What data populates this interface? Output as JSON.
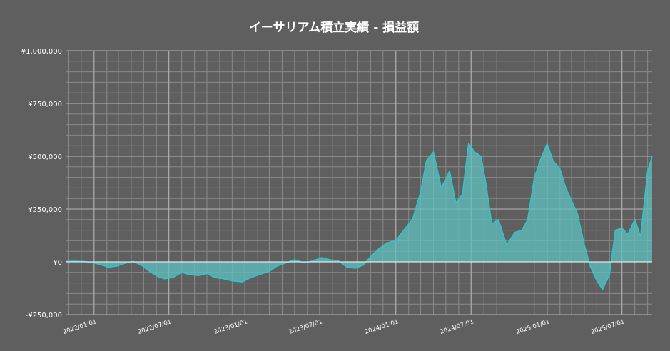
{
  "chart_data": {
    "type": "area",
    "title": "イーサリアム積立実績 - 損益額",
    "xlabel": "",
    "ylabel": "",
    "x_range": [
      "2021-10-26",
      "2025-09-12"
    ],
    "ylim": [
      -250000,
      1000000
    ],
    "y_ticks": [
      -250000,
      0,
      250000,
      500000,
      750000,
      1000000
    ],
    "y_tick_labels": [
      "-¥250,000",
      "¥0",
      "¥250,000",
      "¥500,000",
      "¥750,000",
      "¥1,000,000"
    ],
    "x_ticks": [
      "2022-01-01",
      "2022-07-01",
      "2023-01-01",
      "2023-07-01",
      "2024-01-01",
      "2024-07-01",
      "2025-01-01",
      "2025-07-01"
    ],
    "x_tick_labels": [
      "2022/01/01",
      "2022/07/01",
      "2023/01/01",
      "2023/07/01",
      "2024/01/01",
      "2024/07/01",
      "2025/01/01",
      "2025/07/01"
    ],
    "grid": true,
    "colors": {
      "background": "#5f5f5f",
      "grid_major": "#b4b4b4",
      "grid_minor": "#8a8a8a",
      "line": "#2ec4cc",
      "fill": "#5ec0c0"
    },
    "series": [
      {
        "x": [
          "2021-10-26",
          "2021-11-15",
          "2021-12-05",
          "2021-12-25",
          "2022-01-15",
          "2022-02-05",
          "2022-02-25",
          "2022-03-15",
          "2022-04-05",
          "2022-04-25",
          "2022-05-15",
          "2022-06-05",
          "2022-06-20",
          "2022-07-10",
          "2022-08-01",
          "2022-08-20",
          "2022-09-10",
          "2022-10-01",
          "2022-10-20",
          "2022-11-10",
          "2022-12-01",
          "2022-12-25",
          "2023-01-15",
          "2023-02-05",
          "2023-03-01",
          "2023-03-20",
          "2023-04-10",
          "2023-05-01",
          "2023-05-25",
          "2023-06-15",
          "2023-07-05",
          "2023-07-25",
          "2023-08-15",
          "2023-09-05",
          "2023-09-25",
          "2023-10-15",
          "2023-11-01",
          "2023-11-20",
          "2023-12-10",
          "2024-01-01",
          "2024-01-20",
          "2024-02-10",
          "2024-03-01",
          "2024-03-15",
          "2024-04-01",
          "2024-04-20",
          "2024-05-10",
          "2024-05-25",
          "2024-06-10",
          "2024-06-25",
          "2024-07-10",
          "2024-07-25",
          "2024-08-05",
          "2024-08-20",
          "2024-09-05",
          "2024-09-25",
          "2024-10-15",
          "2024-11-01",
          "2024-11-15",
          "2024-12-01",
          "2024-12-15",
          "2025-01-01",
          "2025-01-15",
          "2025-02-01",
          "2025-02-15",
          "2025-03-01",
          "2025-03-15",
          "2025-04-01",
          "2025-04-15",
          "2025-05-01",
          "2025-05-15",
          "2025-06-01",
          "2025-06-15",
          "2025-07-01",
          "2025-07-15",
          "2025-08-01",
          "2025-08-15",
          "2025-09-01",
          "2025-09-12"
        ],
        "values": [
          2000,
          3000,
          2000,
          -2000,
          -12000,
          -25000,
          -20000,
          -8000,
          2000,
          -15000,
          -45000,
          -70000,
          -80000,
          -75000,
          -50000,
          -60000,
          -65000,
          -55000,
          -75000,
          -80000,
          -90000,
          -95000,
          -75000,
          -60000,
          -45000,
          -20000,
          -5000,
          10000,
          -5000,
          5000,
          20000,
          10000,
          5000,
          -25000,
          -30000,
          -15000,
          25000,
          60000,
          90000,
          100000,
          150000,
          200000,
          330000,
          480000,
          520000,
          350000,
          430000,
          280000,
          320000,
          560000,
          520000,
          500000,
          380000,
          180000,
          200000,
          80000,
          140000,
          150000,
          200000,
          400000,
          480000,
          560000,
          480000,
          440000,
          350000,
          290000,
          230000,
          80000,
          -20000,
          -90000,
          -130000,
          -60000,
          150000,
          160000,
          130000,
          200000,
          120000,
          430000,
          500000
        ]
      }
    ]
  }
}
